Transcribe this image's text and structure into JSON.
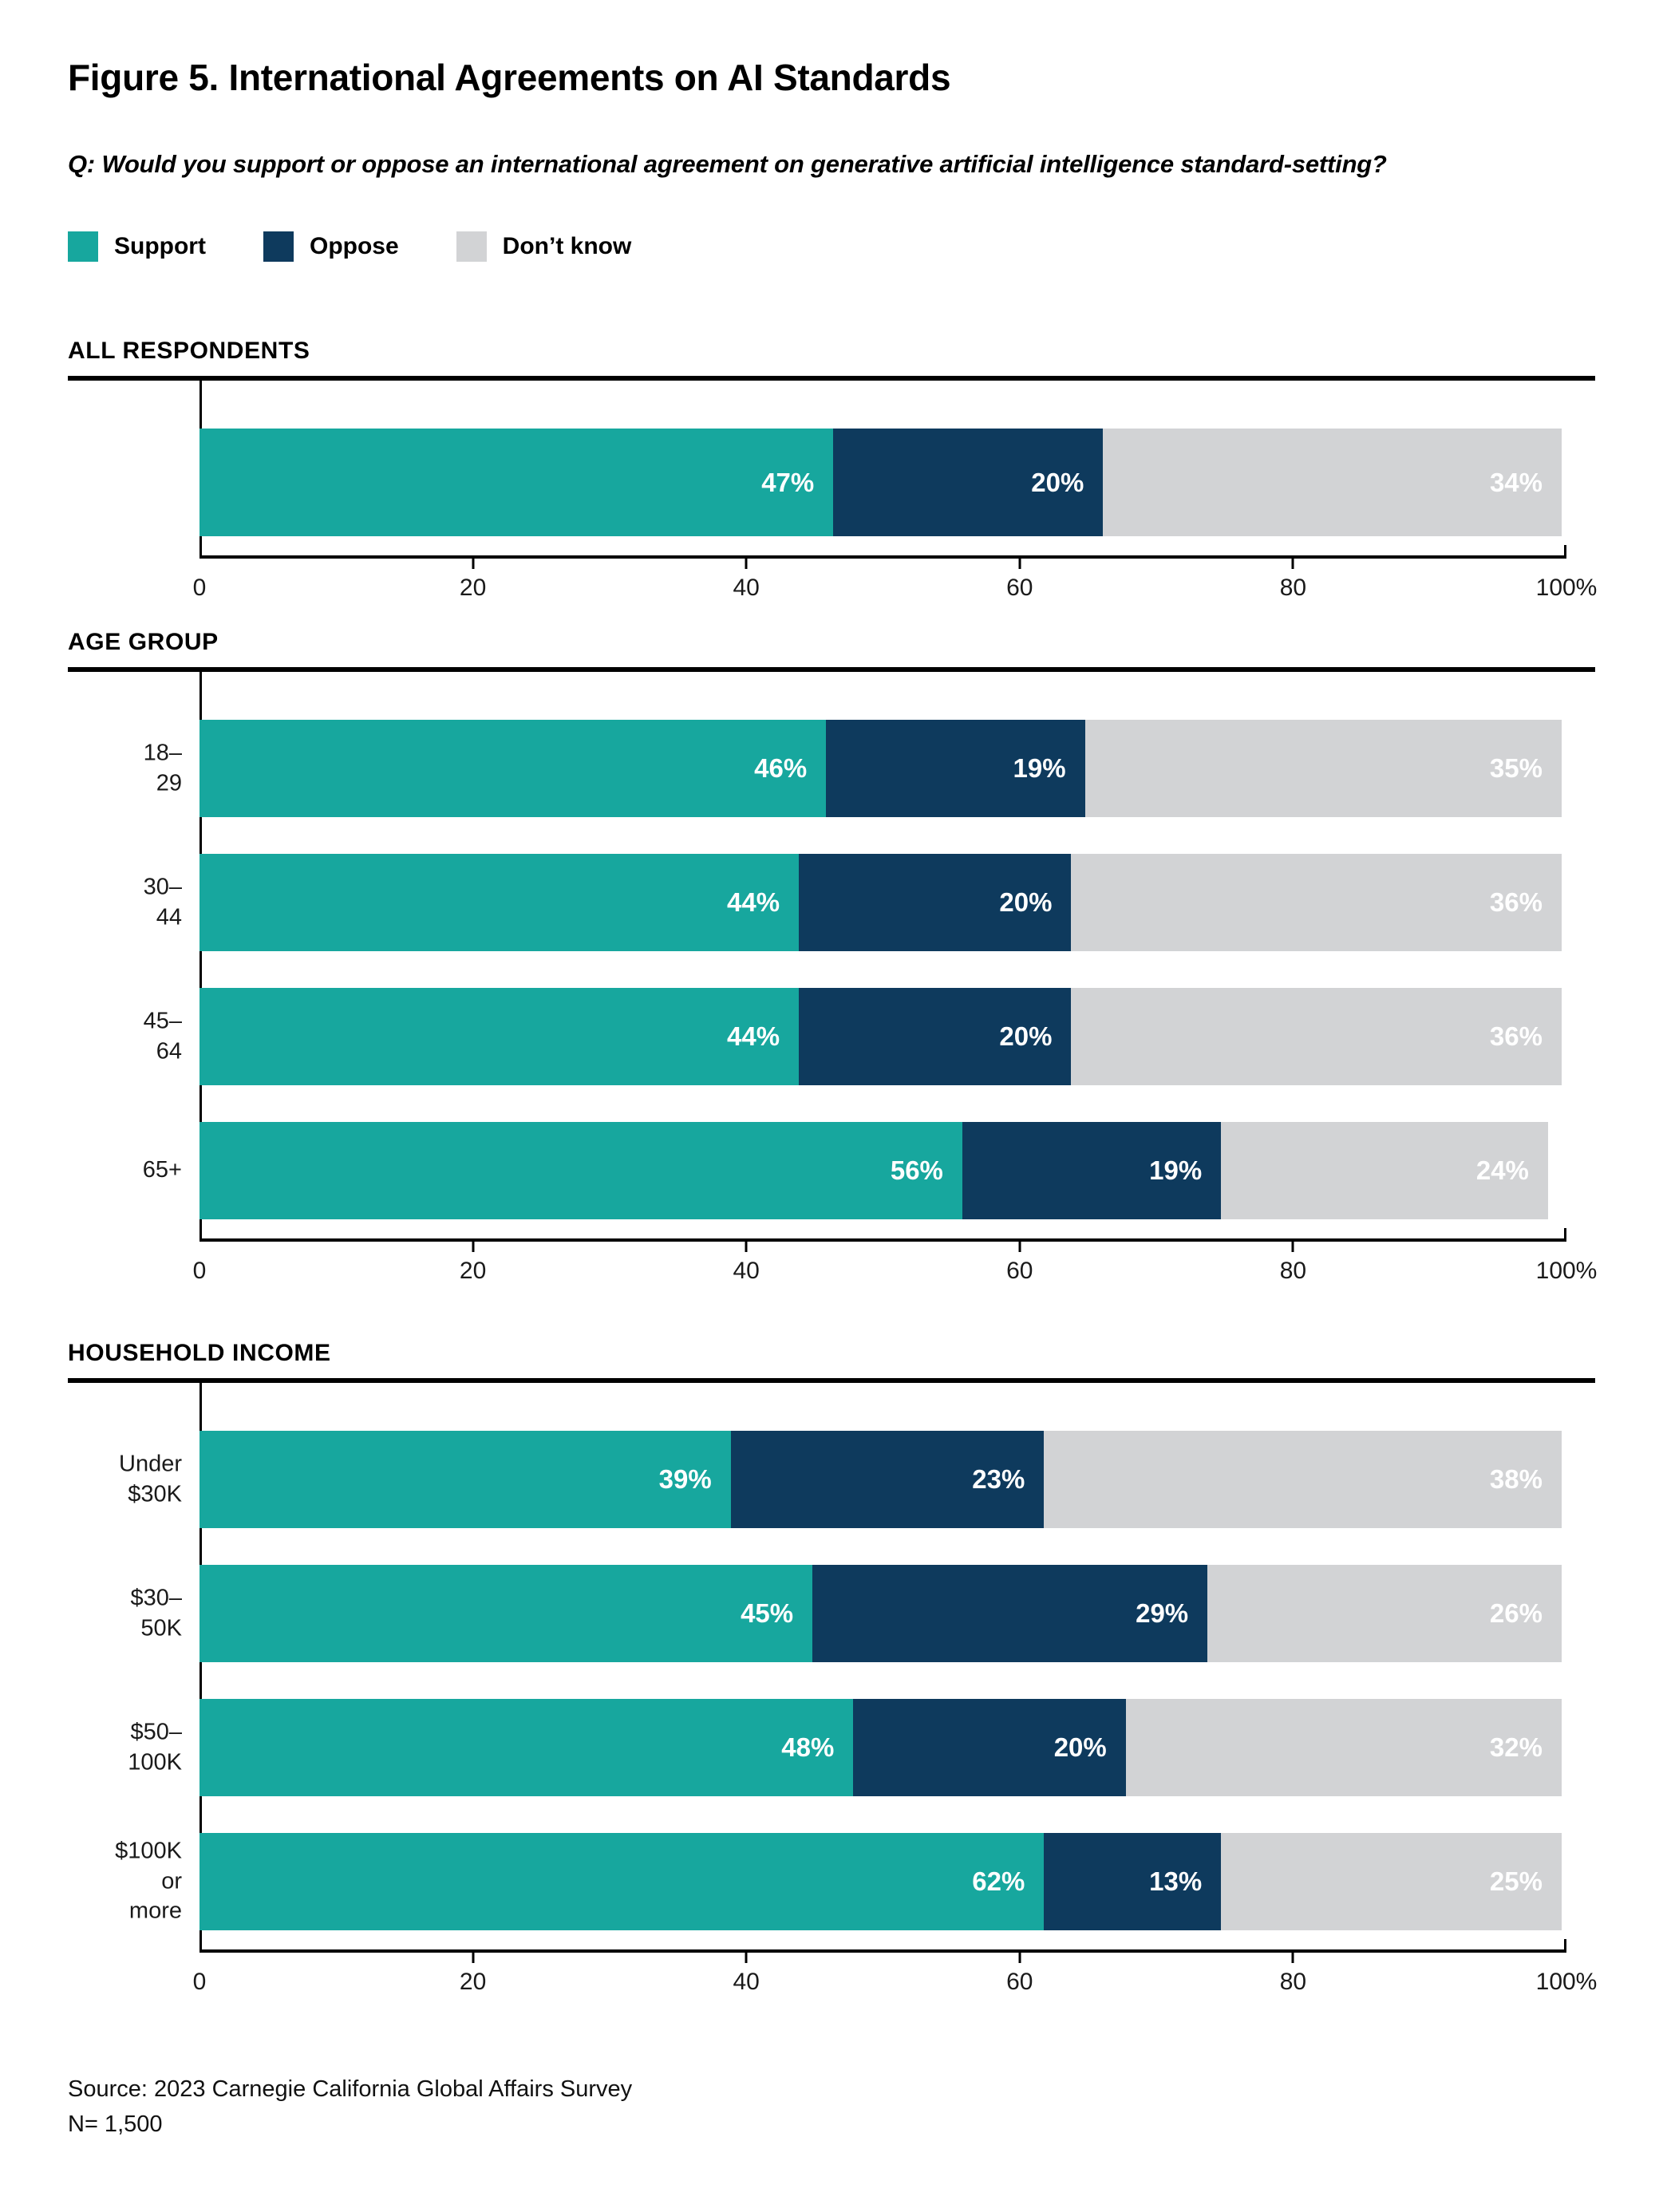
{
  "figure": {
    "title": "Figure 5. International Agreements on AI Standards",
    "question": "Q: Would you support or oppose an international agreement on generative artificial intelligence standard-setting?",
    "source_line1": "Source: 2023 Carnegie California Global Affairs Survey",
    "source_line2": "N= 1,500"
  },
  "legend": [
    {
      "label": "Support",
      "color": "#17A79E"
    },
    {
      "label": "Oppose",
      "color": "#0E3A5D"
    },
    {
      "label": "Don’t know",
      "color": "#D2D3D5"
    }
  ],
  "axis": {
    "min": 0,
    "max": 100,
    "ticks": [
      {
        "value": 0,
        "label": "0"
      },
      {
        "value": 20,
        "label": "20"
      },
      {
        "value": 40,
        "label": "40"
      },
      {
        "value": 60,
        "label": "60"
      },
      {
        "value": 80,
        "label": "80"
      },
      {
        "value": 100,
        "label": "100%"
      }
    ]
  },
  "chart_data": [
    {
      "type": "bar",
      "stacked": true,
      "orientation": "horizontal",
      "section": "ALL RESPONDENTS",
      "unit": "%",
      "xlim": [
        0,
        100
      ],
      "categories": [
        ""
      ],
      "series": [
        {
          "name": "Support",
          "values": [
            47
          ]
        },
        {
          "name": "Oppose",
          "values": [
            20
          ]
        },
        {
          "name": "Don’t know",
          "values": [
            34
          ]
        }
      ]
    },
    {
      "type": "bar",
      "stacked": true,
      "orientation": "horizontal",
      "section": "AGE GROUP",
      "unit": "%",
      "xlim": [
        0,
        100
      ],
      "categories": [
        "18–29",
        "30–44",
        "45–64",
        "65+"
      ],
      "series": [
        {
          "name": "Support",
          "values": [
            46,
            44,
            44,
            56
          ]
        },
        {
          "name": "Oppose",
          "values": [
            19,
            20,
            20,
            19
          ]
        },
        {
          "name": "Don’t know",
          "values": [
            35,
            36,
            36,
            24
          ]
        }
      ]
    },
    {
      "type": "bar",
      "stacked": true,
      "orientation": "horizontal",
      "section": "HOUSEHOLD INCOME",
      "unit": "%",
      "xlim": [
        0,
        100
      ],
      "categories": [
        "Under $30K",
        "$30–50K",
        "$50–100K",
        "$100K\nor more"
      ],
      "series": [
        {
          "name": "Support",
          "values": [
            39,
            45,
            48,
            62
          ]
        },
        {
          "name": "Oppose",
          "values": [
            23,
            29,
            20,
            13
          ]
        },
        {
          "name": "Don’t know",
          "values": [
            38,
            26,
            32,
            25
          ]
        }
      ]
    }
  ]
}
